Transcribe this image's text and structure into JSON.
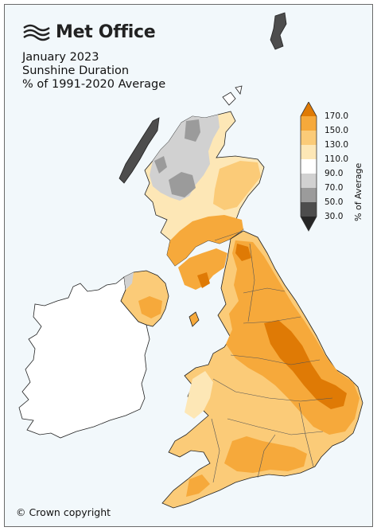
{
  "logo": {
    "text": "Met Office",
    "mark": "wave-lines-logo"
  },
  "title": {
    "line1": "January 2023",
    "line2": "Sunshine Duration",
    "line3": "% of 1991-2020 Average"
  },
  "legend": {
    "unit": "% of Average",
    "boundaries": [
      "170.0",
      "150.0",
      "130.0",
      "110.0",
      "90.0",
      "70.0",
      "50.0",
      "30.0"
    ],
    "colors": [
      "#df7a05",
      "#f6a93b",
      "#fbcb78",
      "#fde7b6",
      "#ffffff",
      "#d1d1d1",
      "#9b9b9b",
      "#4d4d4d",
      "#262626"
    ]
  },
  "copyright": "© Crown copyright",
  "colors": {
    "sea": "#f2f8fb",
    "ireland": "#ffffff",
    "coast": "#222222"
  }
}
